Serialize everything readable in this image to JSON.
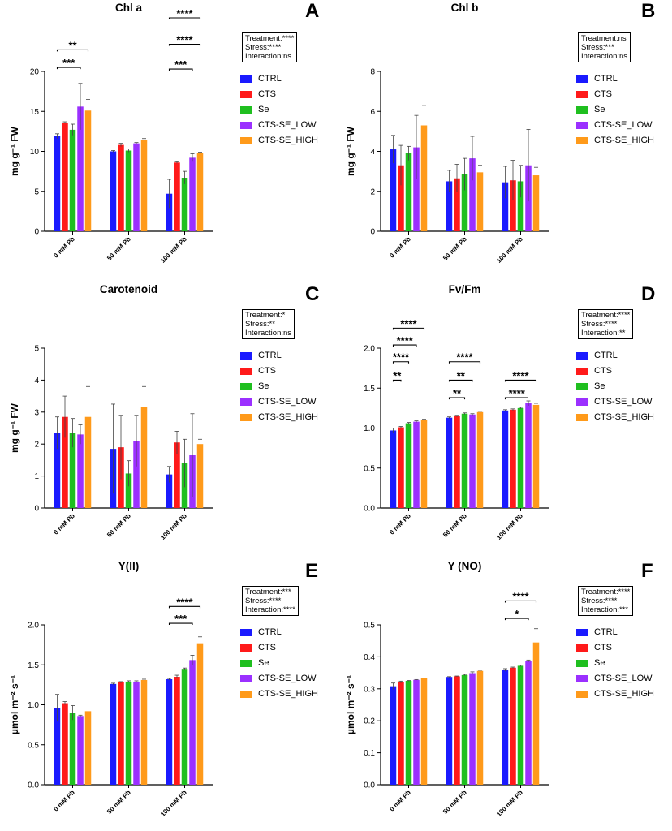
{
  "legend": {
    "items": [
      {
        "label": "CTRL",
        "color": "#1a1aff"
      },
      {
        "label": "CTS",
        "color": "#ff1a1a"
      },
      {
        "label": "Se",
        "color": "#1fbf1f"
      },
      {
        "label": "CTS-SE_LOW",
        "color": "#9b30ff"
      },
      {
        "label": "CTS-SE_HIGH",
        "color": "#ff9a1a"
      }
    ]
  },
  "chart_data": [
    {
      "panel": "A",
      "type": "bar",
      "title": "Chl a",
      "ylabel": "mg g⁻¹ FW",
      "ylim": [
        0,
        20
      ],
      "yticks": [
        0,
        5,
        10,
        15,
        20
      ],
      "categories": [
        "0 mM Pb",
        "50 mM Pb",
        "100 mM Pb"
      ],
      "series": [
        {
          "name": "CTRL",
          "values": [
            11.9,
            10.0,
            4.7
          ],
          "errors": [
            0.3,
            0.1,
            1.8
          ]
        },
        {
          "name": "CTS",
          "values": [
            13.6,
            10.8,
            8.6
          ],
          "errors": [
            0.1,
            0.2,
            0.1
          ]
        },
        {
          "name": "Se",
          "values": [
            12.7,
            10.1,
            6.7
          ],
          "errors": [
            0.7,
            0.2,
            0.8
          ]
        },
        {
          "name": "CTS-SE_LOW",
          "values": [
            15.6,
            11.0,
            9.2
          ],
          "errors": [
            2.9,
            0.1,
            0.5
          ]
        },
        {
          "name": "CTS-SE_HIGH",
          "values": [
            15.1,
            11.4,
            9.8
          ],
          "errors": [
            1.4,
            0.2,
            0.1
          ]
        }
      ],
      "stats": [
        "Treatment:****",
        "Stress:****",
        "Interaction:ns"
      ],
      "significance": [
        {
          "group": 0,
          "from": 0,
          "to": 4,
          "label": "**",
          "y": 22.7
        },
        {
          "group": 0,
          "from": 0,
          "to": 3,
          "label": "***",
          "y": 20.5
        },
        {
          "group": 2,
          "from": 0,
          "to": 4,
          "label": "****",
          "y": 26.7
        },
        {
          "group": 2,
          "from": 0,
          "to": 4,
          "label": "****",
          "y": 23.4
        },
        {
          "group": 2,
          "from": 0,
          "to": 3,
          "label": "***",
          "y": 20.3
        }
      ]
    },
    {
      "panel": "B",
      "type": "bar",
      "title": "Chl b",
      "ylabel": "mg g⁻¹ FW",
      "ylim": [
        0,
        8
      ],
      "yticks": [
        0,
        2,
        4,
        6,
        8
      ],
      "categories": [
        "0 mM Pb",
        "50 mM Pb",
        "100 mM Pb"
      ],
      "series": [
        {
          "name": "CTRL",
          "values": [
            4.1,
            2.5,
            2.45
          ],
          "errors": [
            0.7,
            0.55,
            0.8
          ]
        },
        {
          "name": "CTS",
          "values": [
            3.3,
            2.65,
            2.55
          ],
          "errors": [
            1.0,
            0.7,
            1.0
          ]
        },
        {
          "name": "Se",
          "values": [
            3.9,
            2.85,
            2.5
          ],
          "errors": [
            0.35,
            0.8,
            0.8
          ]
        },
        {
          "name": "CTS-SE_LOW",
          "values": [
            4.2,
            3.65,
            3.3
          ],
          "errors": [
            1.6,
            1.1,
            1.8
          ]
        },
        {
          "name": "CTS-SE_HIGH",
          "values": [
            5.3,
            2.95,
            2.8
          ],
          "errors": [
            1.0,
            0.35,
            0.4
          ]
        }
      ],
      "stats": [
        "Treatment:ns",
        "Stress:***",
        "Interaction:ns"
      ],
      "significance": []
    },
    {
      "panel": "C",
      "type": "bar",
      "title": "Carotenoid",
      "ylabel": "mg g⁻¹ FW",
      "ylim": [
        0,
        5
      ],
      "yticks": [
        0,
        1,
        2,
        3,
        4,
        5
      ],
      "categories": [
        "0 mM Pb",
        "50 mM Pb",
        "100 mM Pb"
      ],
      "series": [
        {
          "name": "CTRL",
          "values": [
            2.35,
            1.85,
            1.05
          ],
          "errors": [
            0.5,
            1.4,
            0.25
          ]
        },
        {
          "name": "CTS",
          "values": [
            2.85,
            1.9,
            2.05
          ],
          "errors": [
            0.65,
            1.0,
            0.35
          ]
        },
        {
          "name": "Se",
          "values": [
            2.35,
            1.08,
            1.4
          ],
          "errors": [
            0.45,
            0.4,
            0.75
          ]
        },
        {
          "name": "CTS-SE_LOW",
          "values": [
            2.3,
            2.1,
            1.65
          ],
          "errors": [
            0.3,
            0.8,
            1.3
          ]
        },
        {
          "name": "CTS-SE_HIGH",
          "values": [
            2.85,
            3.15,
            2.0
          ],
          "errors": [
            0.95,
            0.65,
            0.15
          ]
        }
      ],
      "stats": [
        "Treatment:*",
        "Stress:**",
        "Interaction:ns"
      ],
      "significance": []
    },
    {
      "panel": "D",
      "type": "bar",
      "title": "Fv/Fm",
      "ylabel": "",
      "ylim": [
        0,
        2.0
      ],
      "yticks": [
        0.0,
        0.5,
        1.0,
        1.5,
        2.0
      ],
      "categories": [
        "0 mM Pb",
        "50 mM Pb",
        "100 mM Pb"
      ],
      "series": [
        {
          "name": "CTRL",
          "values": [
            0.97,
            1.13,
            1.22
          ],
          "errors": [
            0.03,
            0.01,
            0.01
          ]
        },
        {
          "name": "CTS",
          "values": [
            1.01,
            1.15,
            1.23
          ],
          "errors": [
            0.01,
            0.01,
            0.01
          ]
        },
        {
          "name": "Se",
          "values": [
            1.06,
            1.18,
            1.25
          ],
          "errors": [
            0.01,
            0.01,
            0.01
          ]
        },
        {
          "name": "CTS-SE_LOW",
          "values": [
            1.08,
            1.17,
            1.31
          ],
          "errors": [
            0.01,
            0.01,
            0.03
          ]
        },
        {
          "name": "CTS-SE_HIGH",
          "values": [
            1.1,
            1.2,
            1.29
          ],
          "errors": [
            0.01,
            0.01,
            0.02
          ]
        }
      ],
      "stats": [
        "Treatment:****",
        "Stress:****",
        "Interaction:**"
      ],
      "significance": [
        {
          "group": 0,
          "from": 0,
          "to": 4,
          "label": "****",
          "y": 2.25
        },
        {
          "group": 0,
          "from": 0,
          "to": 3,
          "label": "****",
          "y": 2.04
        },
        {
          "group": 0,
          "from": 0,
          "to": 2,
          "label": "****",
          "y": 1.83
        },
        {
          "group": 0,
          "from": 0,
          "to": 1,
          "label": "**",
          "y": 1.6
        },
        {
          "group": 1,
          "from": 0,
          "to": 4,
          "label": "****",
          "y": 1.83
        },
        {
          "group": 1,
          "from": 0,
          "to": 3,
          "label": "**",
          "y": 1.6
        },
        {
          "group": 1,
          "from": 0,
          "to": 2,
          "label": "**",
          "y": 1.38
        },
        {
          "group": 2,
          "from": 0,
          "to": 4,
          "label": "****",
          "y": 1.6
        },
        {
          "group": 2,
          "from": 0,
          "to": 3,
          "label": "****",
          "y": 1.38
        }
      ]
    },
    {
      "panel": "E",
      "type": "bar",
      "title": "Y(II)",
      "ylabel": "µmol m⁻² s⁻¹",
      "ylim": [
        0,
        2.0
      ],
      "yticks": [
        0.0,
        0.5,
        1.0,
        1.5,
        2.0
      ],
      "categories": [
        "0 mM Pb",
        "50 mM Pb",
        "100 mM Pb"
      ],
      "series": [
        {
          "name": "CTRL",
          "values": [
            0.96,
            1.26,
            1.32
          ],
          "errors": [
            0.17,
            0.01,
            0.01
          ]
        },
        {
          "name": "CTS",
          "values": [
            1.02,
            1.28,
            1.35
          ],
          "errors": [
            0.02,
            0.01,
            0.02
          ]
        },
        {
          "name": "Se",
          "values": [
            0.9,
            1.29,
            1.45
          ],
          "errors": [
            0.09,
            0.01,
            0.01
          ]
        },
        {
          "name": "CTS-SE_LOW",
          "values": [
            0.86,
            1.29,
            1.56
          ],
          "errors": [
            0.01,
            0.01,
            0.06
          ]
        },
        {
          "name": "CTS-SE_HIGH",
          "values": [
            0.92,
            1.31,
            1.77
          ],
          "errors": [
            0.04,
            0.01,
            0.08
          ]
        }
      ],
      "stats": [
        "Treatment:***",
        "Stress:****",
        "Interaction:****"
      ],
      "significance": [
        {
          "group": 2,
          "from": 0,
          "to": 4,
          "label": "****",
          "y": 2.23
        },
        {
          "group": 2,
          "from": 0,
          "to": 3,
          "label": "***",
          "y": 2.02
        }
      ]
    },
    {
      "panel": "F",
      "type": "bar",
      "title": "Y (NO)",
      "ylabel": "µmol m⁻² s⁻¹",
      "ylim": [
        0,
        0.5
      ],
      "yticks": [
        0.0,
        0.1,
        0.2,
        0.3,
        0.4,
        0.5
      ],
      "categories": [
        "0 mM Pb",
        "50 mM Pb",
        "100 mM Pb"
      ],
      "series": [
        {
          "name": "CTRL",
          "values": [
            0.308,
            0.337,
            0.359
          ],
          "errors": [
            0.01,
            0.001,
            0.004
          ]
        },
        {
          "name": "CTS",
          "values": [
            0.321,
            0.339,
            0.366
          ],
          "errors": [
            0.003,
            0.001,
            0.002
          ]
        },
        {
          "name": "Se",
          "values": [
            0.325,
            0.343,
            0.372
          ],
          "errors": [
            0.001,
            0.002,
            0.002
          ]
        },
        {
          "name": "CTS-SE_LOW",
          "values": [
            0.328,
            0.349,
            0.387
          ],
          "errors": [
            0.001,
            0.004,
            0.003
          ]
        },
        {
          "name": "CTS-SE_HIGH",
          "values": [
            0.333,
            0.356,
            0.445
          ],
          "errors": [
            0.001,
            0.002,
            0.043
          ]
        }
      ],
      "stats": [
        "Treatment:****",
        "Stress:****",
        "Interaction:***"
      ],
      "significance": [
        {
          "group": 2,
          "from": 0,
          "to": 4,
          "label": "****",
          "y": 0.575
        },
        {
          "group": 2,
          "from": 0,
          "to": 3,
          "label": "*",
          "y": 0.52
        }
      ]
    }
  ]
}
